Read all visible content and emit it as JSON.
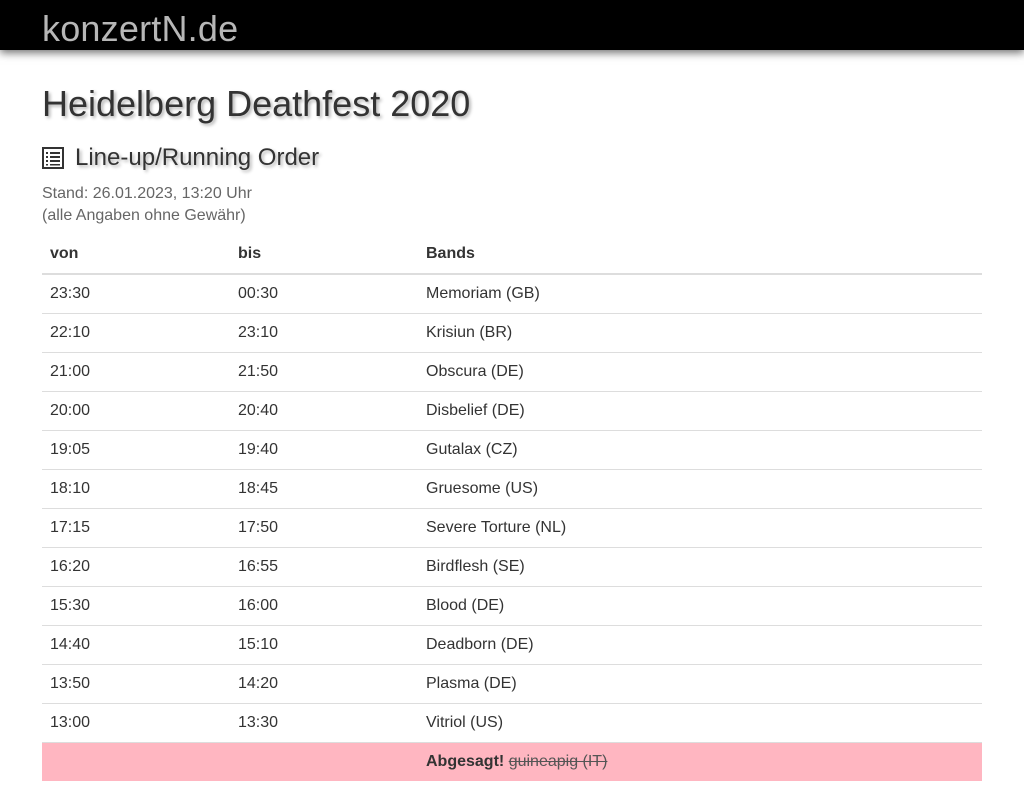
{
  "site": {
    "brand": "konzertN.de"
  },
  "page": {
    "title": "Heidelberg Deathfest 2020",
    "section_title": "Line-up/Running Order",
    "status": "Stand: 26.01.2023, 13:20 Uhr",
    "disclaimer": "(alle Angaben ohne Gewähr)"
  },
  "table": {
    "headers": {
      "from": "von",
      "to": "bis",
      "bands": "Bands"
    },
    "rows": [
      {
        "from": "23:30",
        "to": "00:30",
        "band": "Memoriam (GB)"
      },
      {
        "from": "22:10",
        "to": "23:10",
        "band": "Krisiun (BR)"
      },
      {
        "from": "21:00",
        "to": "21:50",
        "band": "Obscura (DE)"
      },
      {
        "from": "20:00",
        "to": "20:40",
        "band": "Disbelief (DE)"
      },
      {
        "from": "19:05",
        "to": "19:40",
        "band": "Gutalax (CZ)"
      },
      {
        "from": "18:10",
        "to": "18:45",
        "band": "Gruesome (US)"
      },
      {
        "from": "17:15",
        "to": "17:50",
        "band": "Severe Torture (NL)"
      },
      {
        "from": "16:20",
        "to": "16:55",
        "band": "Birdflesh (SE)"
      },
      {
        "from": "15:30",
        "to": "16:00",
        "band": "Blood (DE)"
      },
      {
        "from": "14:40",
        "to": "15:10",
        "band": "Deadborn (DE)"
      },
      {
        "from": "13:50",
        "to": "14:20",
        "band": "Plasma (DE)"
      },
      {
        "from": "13:00",
        "to": "13:30",
        "band": "Vitriol (US)"
      }
    ],
    "cancelled": {
      "label": "Abgesagt!",
      "band": "guineapig (IT)"
    }
  },
  "colors": {
    "topbar": "#000000",
    "cancelled_row": "#ffb6c1",
    "brand": "#b7b7b7"
  },
  "icons": {
    "section": "list-icon"
  }
}
